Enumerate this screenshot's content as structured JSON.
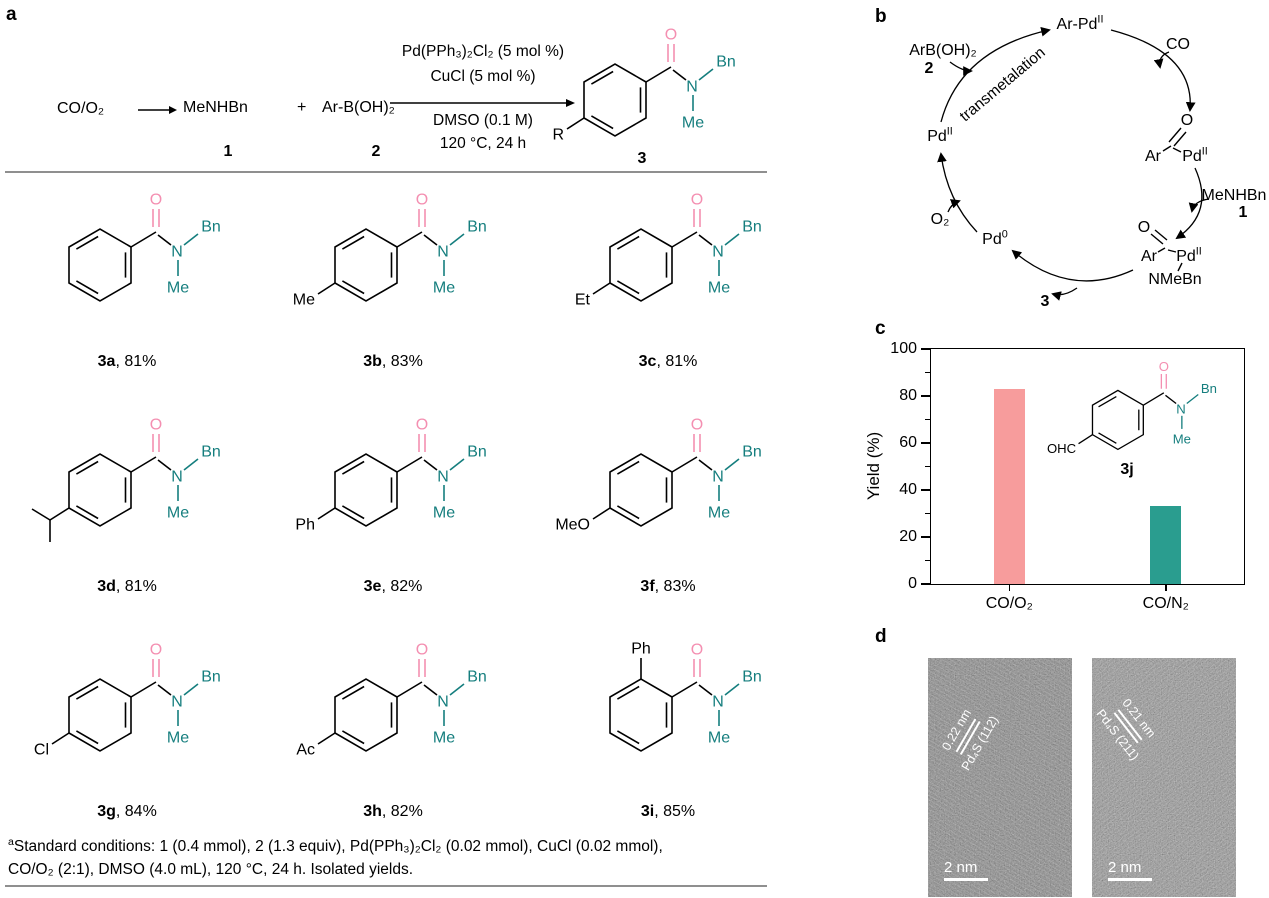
{
  "colors": {
    "pink": "#F48FB1",
    "teal": "#157E7E",
    "violet": "#EE82EE",
    "blue": "#47A3E8",
    "bar_pink": "#F79C9C",
    "bar_teal": "#2A9D8F",
    "line_gray": "#8F8F8F"
  },
  "panel_a": {
    "label": "a",
    "scheme": {
      "co": "CO",
      "slash": "/",
      "o2": "O₂",
      "amine": "MeNHBn",
      "amine_num": "1",
      "plus": "+",
      "boronic": "Ar-B(OH)₂",
      "boronic_num": "2",
      "conditions_above": [
        "Pd(PPh₃)₂Cl₂ (5 mol %)",
        "CuCl (5 mol %)"
      ],
      "conditions_below": [
        "DMSO (0.1 M)",
        "120 °C, 24 h"
      ],
      "product_sub": "R",
      "product_num": "3"
    },
    "amide_labels": {
      "O": "O",
      "N": "N",
      "Bn": "Bn",
      "Me": "Me"
    },
    "compounds": [
      {
        "id": "3a",
        "yield": "81%",
        "sub": "",
        "sub_kind": "none"
      },
      {
        "id": "3b",
        "yield": "83%",
        "sub": "Me",
        "sub_kind": "para"
      },
      {
        "id": "3c",
        "yield": "81%",
        "sub": "Et",
        "sub_kind": "para"
      },
      {
        "id": "3d",
        "yield": "81%",
        "sub": "",
        "sub_kind": "isopropyl"
      },
      {
        "id": "3e",
        "yield": "82%",
        "sub": "Ph",
        "sub_kind": "para"
      },
      {
        "id": "3f",
        "yield": "83%",
        "sub": "MeO",
        "sub_kind": "para"
      },
      {
        "id": "3g",
        "yield": "84%",
        "sub": "Cl",
        "sub_kind": "para"
      },
      {
        "id": "3h",
        "yield": "82%",
        "sub": "Ac",
        "sub_kind": "para"
      },
      {
        "id": "3i",
        "yield": "85%",
        "sub": "Ph",
        "sub_kind": "ortho"
      }
    ],
    "footnote": {
      "line1_rich": [
        {
          "t": "a",
          "sup": true
        },
        {
          "t": "Standard conditions: 1 (0.4 mmol), 2 (1.3 equiv), Pd(PPh₃)₂Cl₂ (0.02 mmol), CuCl (0.02 mmol),"
        }
      ],
      "line2": "CO/O₂ (2:1), DMSO (4.0 mL), 120 °C, 24 h. Isolated yields."
    }
  },
  "panel_b": {
    "label": "b",
    "labels": {
      "ar_pd": [
        {
          "t": "Ar-Pd"
        },
        {
          "t": "II",
          "sup": true
        }
      ],
      "co": "CO",
      "acyl1_ar": "Ar",
      "acyl1_o": "O",
      "acyl1_pd": [
        {
          "t": "Pd"
        },
        {
          "t": "II",
          "sup": true
        }
      ],
      "amine": "MeNHBn",
      "amine_num": "1",
      "acyl2_ar": "Ar",
      "acyl2_o": "O",
      "acyl2_pd": [
        {
          "t": "Pd"
        },
        {
          "t": "II",
          "sup": true
        }
      ],
      "acyl2_n": "NMeBn",
      "product_num": "3",
      "pd0": [
        {
          "t": "Pd"
        },
        {
          "t": "0",
          "sup": true
        }
      ],
      "o2": "O₂",
      "pd2": [
        {
          "t": "Pd"
        },
        {
          "t": "II",
          "sup": true
        }
      ],
      "arb": "ArB(OH)₂",
      "arb_num": "2",
      "transmetalation": "transmetalation"
    }
  },
  "panel_c": {
    "label": "c",
    "inset": {
      "sub": "OHC",
      "id": "3j"
    }
  },
  "chart_data": {
    "type": "bar",
    "categories": [
      "CO/O₂",
      "CO/N₂"
    ],
    "values": [
      83,
      33
    ],
    "bar_colors": [
      "#F79C9C",
      "#2A9D8F"
    ],
    "title": "",
    "xlabel": "",
    "ylabel": "Yield (%)",
    "ylim": [
      0,
      100
    ],
    "yticks": [
      0,
      20,
      40,
      60,
      80,
      100
    ],
    "minor_ticks": [
      10,
      30,
      50,
      70,
      90
    ],
    "grid": false,
    "legend": false
  },
  "panel_d": {
    "label": "d",
    "images": [
      {
        "d_label": "0.22 nm",
        "phase_label": "Pd₄S (112)",
        "scale_label": "2 nm"
      },
      {
        "d_label": "0.21 nm",
        "phase_label": "Pd₄S (211)",
        "scale_label": "2 nm"
      }
    ]
  }
}
